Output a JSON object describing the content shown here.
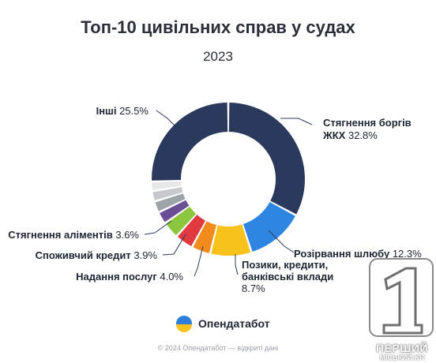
{
  "chart_data": {
    "type": "pie",
    "title": "Топ-10 цивільних справ у судах",
    "subtitle": "2023",
    "slices": [
      {
        "label": "Стягнення боргів ЖКХ",
        "value": 32.8,
        "value_label": "32.8%",
        "color": "#2b3a5c",
        "labeled": true
      },
      {
        "label": "Розірвання шлюбу",
        "value": 12.3,
        "value_label": "12.3%",
        "color": "#2e86e0",
        "labeled": true
      },
      {
        "label": "Позики, кредити, банківські вклади",
        "value": 8.7,
        "value_label": "8.7%",
        "color": "#f7c21b",
        "labeled": true
      },
      {
        "label": "Надання послуг",
        "value": 4.0,
        "value_label": "4.0%",
        "color": "#f28a1c",
        "labeled": true
      },
      {
        "label": "Споживчий кредит",
        "value": 3.9,
        "value_label": "3.9%",
        "color": "#e0393f",
        "labeled": true
      },
      {
        "label": "Стягнення аліментів",
        "value": 3.6,
        "value_label": "3.6%",
        "color": "#8cc63f",
        "labeled": true
      },
      {
        "label": "",
        "value": 2.6,
        "value_label": "",
        "color": "#6a4f97",
        "labeled": false
      },
      {
        "label": "",
        "value": 2.4,
        "value_label": "",
        "color": "#9ea3aa",
        "labeled": false
      },
      {
        "label": "",
        "value": 2.2,
        "value_label": "",
        "color": "#c5c8cd",
        "labeled": false
      },
      {
        "label": "",
        "value": 2.0,
        "value_label": "",
        "color": "#e6e7e9",
        "labeled": false
      },
      {
        "label": "Інші",
        "value": 25.5,
        "value_label": "25.5%",
        "color": "#2b3a5c",
        "labeled": true
      }
    ],
    "labels": [
      {
        "key": "Стягнення боргів",
        "lines": [
          "Стягнення боргів",
          "ЖКХ 32.8%"
        ]
      },
      {
        "key": "Розірвання шлюбу",
        "lines": [
          "Розірвання шлюбу 12.3%"
        ]
      },
      {
        "key": "Позики",
        "lines": [
          "Позики, кредити,",
          "банківські вклади",
          "8.7%"
        ]
      },
      {
        "key": "Надання послуг",
        "lines": [
          "Надання послуг 4.0%"
        ]
      },
      {
        "key": "Споживчий кредит",
        "lines": [
          "Споживчий кредит 3.9%"
        ]
      },
      {
        "key": "Стягнення аліментів",
        "lines": [
          "Стягнення аліментів 3.6%"
        ]
      },
      {
        "key": "Інші",
        "lines": [
          "Інші 25.5%"
        ]
      }
    ]
  },
  "brand": {
    "name": "Опендатабот",
    "colors": [
      "#2e7fd9",
      "#f7c21b"
    ]
  },
  "footer": "© 2024 Опендатабот — відкриті дані",
  "watermark": {
    "line1": "ПЕРШИЙ",
    "line2": "МІСЬКИЙ.KR",
    "digit": "1"
  }
}
